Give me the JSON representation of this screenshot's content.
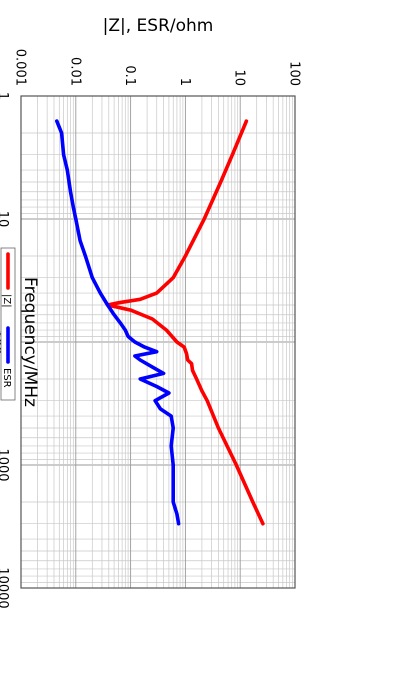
{
  "chart_data": {
    "type": "line",
    "title": "",
    "xlabel": "Frequency/MHz",
    "ylabel": "|Z|, ESR/ohm",
    "x_scale": "log",
    "y_scale": "log",
    "xlim": [
      1,
      10000
    ],
    "ylim": [
      0.001,
      100
    ],
    "x_tick_labels": [
      "1",
      "10",
      "100",
      "1000",
      "10000"
    ],
    "y_tick_labels": [
      "0.001",
      "0.01",
      "0.1",
      "1",
      "10",
      "100"
    ],
    "grid": true,
    "legend_position": "bottom",
    "series": [
      {
        "name": "|Z|",
        "color": "#ff0000",
        "x": [
          1.6,
          3,
          5,
          10,
          20,
          30,
          40,
          45,
          48,
          50,
          55,
          65,
          80,
          100,
          110,
          125,
          140,
          150,
          170,
          200,
          250,
          300,
          500,
          1000,
          2000,
          3000
        ],
        "y": [
          13,
          7.2,
          4.4,
          2.2,
          1.0,
          0.6,
          0.3,
          0.15,
          0.06,
          0.038,
          0.1,
          0.25,
          0.45,
          0.7,
          0.95,
          1.05,
          1.1,
          1.3,
          1.35,
          1.6,
          2.0,
          2.5,
          4.0,
          8.5,
          17,
          26
        ]
      },
      {
        "name": "ESR",
        "color": "#0000ff",
        "x": [
          1.6,
          2,
          3,
          4,
          6,
          8,
          10,
          15,
          20,
          30,
          40,
          50,
          60,
          70,
          80,
          90,
          100,
          110,
          120,
          130,
          140,
          160,
          180,
          200,
          230,
          260,
          300,
          350,
          400,
          500,
          700,
          1000,
          1500,
          2000,
          2500,
          3000
        ],
        "y": [
          0.0045,
          0.0055,
          0.006,
          0.007,
          0.008,
          0.009,
          0.01,
          0.012,
          0.015,
          0.02,
          0.028,
          0.038,
          0.05,
          0.065,
          0.08,
          0.09,
          0.12,
          0.18,
          0.3,
          0.12,
          0.15,
          0.25,
          0.4,
          0.15,
          0.3,
          0.5,
          0.28,
          0.35,
          0.55,
          0.6,
          0.55,
          0.6,
          0.6,
          0.6,
          0.7,
          0.75
        ]
      }
    ]
  }
}
